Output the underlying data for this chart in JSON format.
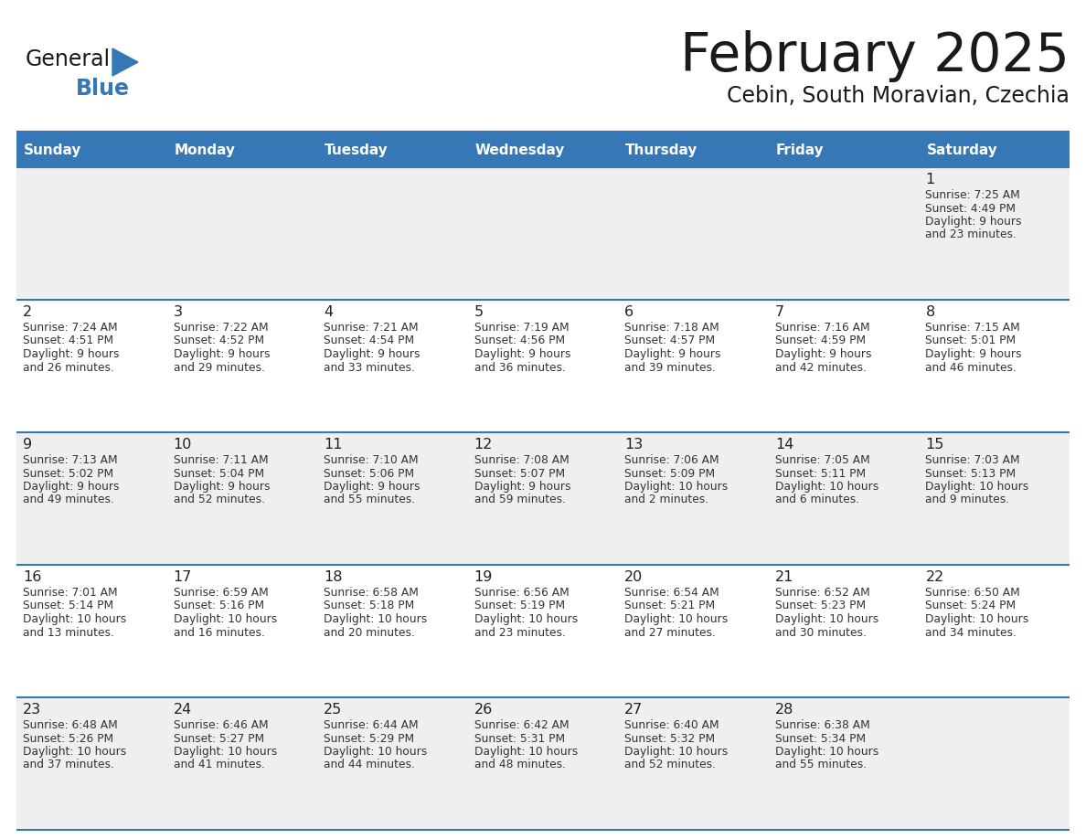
{
  "title": "February 2025",
  "subtitle": "Cebin, South Moravian, Czechia",
  "header_bg": "#3578b5",
  "header_text": "#ffffff",
  "cell_bg_light": "#efefef",
  "cell_bg_white": "#ffffff",
  "border_color": "#3578b5",
  "text_color": "#333333",
  "day_num_color": "#222222",
  "day_headers": [
    "Sunday",
    "Monday",
    "Tuesday",
    "Wednesday",
    "Thursday",
    "Friday",
    "Saturday"
  ],
  "days": [
    {
      "day": 1,
      "col": 6,
      "row": 0,
      "sunrise": "7:25 AM",
      "sunset": "4:49 PM",
      "daylight": "9 hours and 23 minutes."
    },
    {
      "day": 2,
      "col": 0,
      "row": 1,
      "sunrise": "7:24 AM",
      "sunset": "4:51 PM",
      "daylight": "9 hours and 26 minutes."
    },
    {
      "day": 3,
      "col": 1,
      "row": 1,
      "sunrise": "7:22 AM",
      "sunset": "4:52 PM",
      "daylight": "9 hours and 29 minutes."
    },
    {
      "day": 4,
      "col": 2,
      "row": 1,
      "sunrise": "7:21 AM",
      "sunset": "4:54 PM",
      "daylight": "9 hours and 33 minutes."
    },
    {
      "day": 5,
      "col": 3,
      "row": 1,
      "sunrise": "7:19 AM",
      "sunset": "4:56 PM",
      "daylight": "9 hours and 36 minutes."
    },
    {
      "day": 6,
      "col": 4,
      "row": 1,
      "sunrise": "7:18 AM",
      "sunset": "4:57 PM",
      "daylight": "9 hours and 39 minutes."
    },
    {
      "day": 7,
      "col": 5,
      "row": 1,
      "sunrise": "7:16 AM",
      "sunset": "4:59 PM",
      "daylight": "9 hours and 42 minutes."
    },
    {
      "day": 8,
      "col": 6,
      "row": 1,
      "sunrise": "7:15 AM",
      "sunset": "5:01 PM",
      "daylight": "9 hours and 46 minutes."
    },
    {
      "day": 9,
      "col": 0,
      "row": 2,
      "sunrise": "7:13 AM",
      "sunset": "5:02 PM",
      "daylight": "9 hours and 49 minutes."
    },
    {
      "day": 10,
      "col": 1,
      "row": 2,
      "sunrise": "7:11 AM",
      "sunset": "5:04 PM",
      "daylight": "9 hours and 52 minutes."
    },
    {
      "day": 11,
      "col": 2,
      "row": 2,
      "sunrise": "7:10 AM",
      "sunset": "5:06 PM",
      "daylight": "9 hours and 55 minutes."
    },
    {
      "day": 12,
      "col": 3,
      "row": 2,
      "sunrise": "7:08 AM",
      "sunset": "5:07 PM",
      "daylight": "9 hours and 59 minutes."
    },
    {
      "day": 13,
      "col": 4,
      "row": 2,
      "sunrise": "7:06 AM",
      "sunset": "5:09 PM",
      "daylight": "10 hours and 2 minutes."
    },
    {
      "day": 14,
      "col": 5,
      "row": 2,
      "sunrise": "7:05 AM",
      "sunset": "5:11 PM",
      "daylight": "10 hours and 6 minutes."
    },
    {
      "day": 15,
      "col": 6,
      "row": 2,
      "sunrise": "7:03 AM",
      "sunset": "5:13 PM",
      "daylight": "10 hours and 9 minutes."
    },
    {
      "day": 16,
      "col": 0,
      "row": 3,
      "sunrise": "7:01 AM",
      "sunset": "5:14 PM",
      "daylight": "10 hours and 13 minutes."
    },
    {
      "day": 17,
      "col": 1,
      "row": 3,
      "sunrise": "6:59 AM",
      "sunset": "5:16 PM",
      "daylight": "10 hours and 16 minutes."
    },
    {
      "day": 18,
      "col": 2,
      "row": 3,
      "sunrise": "6:58 AM",
      "sunset": "5:18 PM",
      "daylight": "10 hours and 20 minutes."
    },
    {
      "day": 19,
      "col": 3,
      "row": 3,
      "sunrise": "6:56 AM",
      "sunset": "5:19 PM",
      "daylight": "10 hours and 23 minutes."
    },
    {
      "day": 20,
      "col": 4,
      "row": 3,
      "sunrise": "6:54 AM",
      "sunset": "5:21 PM",
      "daylight": "10 hours and 27 minutes."
    },
    {
      "day": 21,
      "col": 5,
      "row": 3,
      "sunrise": "6:52 AM",
      "sunset": "5:23 PM",
      "daylight": "10 hours and 30 minutes."
    },
    {
      "day": 22,
      "col": 6,
      "row": 3,
      "sunrise": "6:50 AM",
      "sunset": "5:24 PM",
      "daylight": "10 hours and 34 minutes."
    },
    {
      "day": 23,
      "col": 0,
      "row": 4,
      "sunrise": "6:48 AM",
      "sunset": "5:26 PM",
      "daylight": "10 hours and 37 minutes."
    },
    {
      "day": 24,
      "col": 1,
      "row": 4,
      "sunrise": "6:46 AM",
      "sunset": "5:27 PM",
      "daylight": "10 hours and 41 minutes."
    },
    {
      "day": 25,
      "col": 2,
      "row": 4,
      "sunrise": "6:44 AM",
      "sunset": "5:29 PM",
      "daylight": "10 hours and 44 minutes."
    },
    {
      "day": 26,
      "col": 3,
      "row": 4,
      "sunrise": "6:42 AM",
      "sunset": "5:31 PM",
      "daylight": "10 hours and 48 minutes."
    },
    {
      "day": 27,
      "col": 4,
      "row": 4,
      "sunrise": "6:40 AM",
      "sunset": "5:32 PM",
      "daylight": "10 hours and 52 minutes."
    },
    {
      "day": 28,
      "col": 5,
      "row": 4,
      "sunrise": "6:38 AM",
      "sunset": "5:34 PM",
      "daylight": "10 hours and 55 minutes."
    }
  ],
  "num_rows": 5,
  "num_cols": 7,
  "logo_general_color": "#1a1a1a",
  "logo_blue_color": "#3578b5",
  "title_color": "#1a1a1a",
  "subtitle_color": "#1a1a1a"
}
